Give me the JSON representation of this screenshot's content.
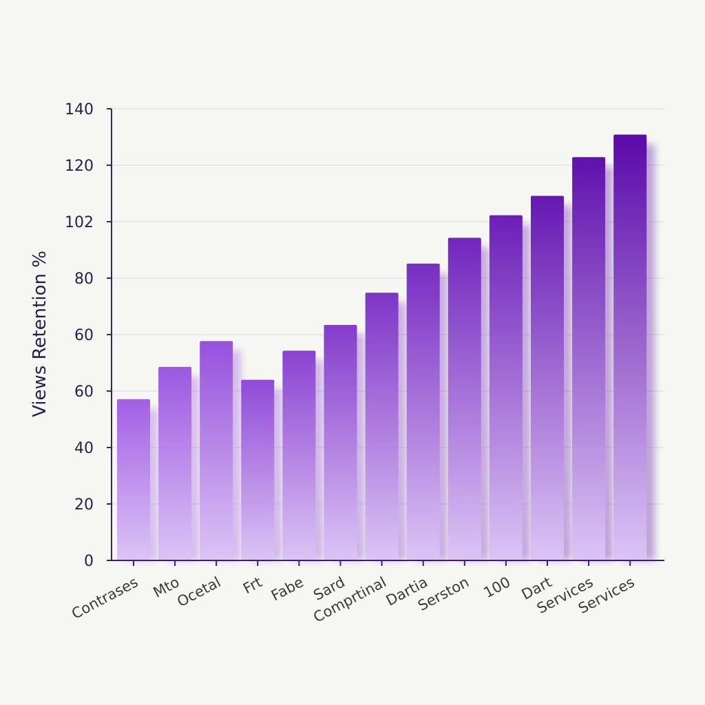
{
  "chart_data": {
    "type": "bar",
    "title": "",
    "xlabel": "",
    "ylabel": "Views Retention %",
    "ylim": [
      0,
      140
    ],
    "y_tick_labels": [
      "0",
      "20",
      "40",
      "60",
      "60",
      "80",
      "102",
      "120",
      "140"
    ],
    "categories": [
      "Contrases",
      "Mto",
      "Ocetal",
      "Frt",
      "Fabe",
      "Sard",
      "Comprtinal",
      "Dartia",
      "Serston",
      "100",
      "Dart",
      "Services",
      "Services"
    ],
    "series": [
      {
        "values": [
          50,
          60,
          68,
          56,
          65,
          73,
          83,
          92,
          100,
          107,
          113,
          125,
          132
        ]
      }
    ],
    "grid": true,
    "legend": "none",
    "colors": {
      "bar_top_light": "#a25fe6",
      "bar_top_dark": "#5a0aa8",
      "bar_bottom": "#dcc4f5",
      "axis": "#3a1f6e",
      "grid": "#e4e2ea"
    }
  }
}
